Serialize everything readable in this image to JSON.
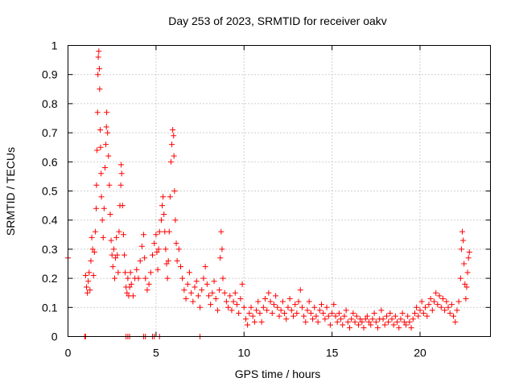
{
  "chart_data": {
    "type": "scatter",
    "title": "Day 253 of 2023, SRMTID for receiver oakv",
    "xlabel": "GPS time / hours",
    "ylabel": "SRMTID / TECUs",
    "xlim": [
      0,
      24
    ],
    "ylim": [
      0,
      1
    ],
    "xticks": [
      "0",
      "5",
      "10",
      "15",
      "20"
    ],
    "yticks": [
      "0",
      "0.1",
      "0.2",
      "0.3",
      "0.4",
      "0.5",
      "0.6",
      "0.7",
      "0.8",
      "0.9",
      "1"
    ],
    "grid": true,
    "marker": "+",
    "color": "#ff0000",
    "series": [
      {
        "name": "SRMTID",
        "points": [
          [
            0.0,
            0.27
          ],
          [
            0.95,
            0.0
          ],
          [
            1.0,
            0.0
          ],
          [
            3.3,
            0.0
          ],
          [
            3.4,
            0.0
          ],
          [
            3.5,
            0.0
          ],
          [
            4.3,
            0.0
          ],
          [
            4.4,
            0.0
          ],
          [
            4.8,
            0.0
          ],
          [
            4.9,
            0.0
          ],
          [
            5.2,
            0.0
          ],
          [
            7.5,
            0.0
          ],
          [
            1.0,
            0.21
          ],
          [
            1.05,
            0.17
          ],
          [
            1.1,
            0.15
          ],
          [
            1.15,
            0.19
          ],
          [
            1.2,
            0.22
          ],
          [
            1.25,
            0.16
          ],
          [
            1.3,
            0.26
          ],
          [
            1.35,
            0.34
          ],
          [
            1.4,
            0.3
          ],
          [
            1.45,
            0.21
          ],
          [
            1.5,
            0.29
          ],
          [
            1.55,
            0.36
          ],
          [
            1.6,
            0.44
          ],
          [
            1.62,
            0.52
          ],
          [
            1.65,
            0.64
          ],
          [
            1.68,
            0.77
          ],
          [
            1.7,
            0.9
          ],
          [
            1.72,
            0.96
          ],
          [
            1.75,
            0.98
          ],
          [
            1.78,
            0.92
          ],
          [
            1.8,
            0.85
          ],
          [
            1.83,
            0.71
          ],
          [
            1.85,
            0.65
          ],
          [
            1.88,
            0.56
          ],
          [
            1.9,
            0.48
          ],
          [
            1.95,
            0.4
          ],
          [
            2.0,
            0.34
          ],
          [
            2.05,
            0.44
          ],
          [
            2.1,
            0.58
          ],
          [
            2.15,
            0.66
          ],
          [
            2.18,
            0.72
          ],
          [
            2.2,
            0.77
          ],
          [
            2.25,
            0.7
          ],
          [
            2.3,
            0.62
          ],
          [
            2.35,
            0.52
          ],
          [
            2.4,
            0.42
          ],
          [
            2.45,
            0.33
          ],
          [
            2.5,
            0.28
          ],
          [
            2.55,
            0.24
          ],
          [
            2.6,
            0.3
          ],
          [
            2.65,
            0.2
          ],
          [
            2.7,
            0.27
          ],
          [
            2.75,
            0.34
          ],
          [
            2.8,
            0.28
          ],
          [
            2.85,
            0.22
          ],
          [
            2.9,
            0.36
          ],
          [
            2.95,
            0.45
          ],
          [
            3.0,
            0.52
          ],
          [
            3.02,
            0.59
          ],
          [
            3.05,
            0.56
          ],
          [
            3.1,
            0.45
          ],
          [
            3.15,
            0.35
          ],
          [
            3.2,
            0.28
          ],
          [
            3.25,
            0.22
          ],
          [
            3.3,
            0.17
          ],
          [
            3.35,
            0.15
          ],
          [
            3.4,
            0.2
          ],
          [
            3.45,
            0.14
          ],
          [
            3.5,
            0.17
          ],
          [
            3.55,
            0.22
          ],
          [
            3.6,
            0.18
          ],
          [
            3.7,
            0.14
          ],
          [
            3.8,
            0.2
          ],
          [
            3.9,
            0.23
          ],
          [
            4.0,
            0.2
          ],
          [
            4.1,
            0.26
          ],
          [
            4.2,
            0.31
          ],
          [
            4.3,
            0.35
          ],
          [
            4.35,
            0.27
          ],
          [
            4.4,
            0.2
          ],
          [
            4.5,
            0.16
          ],
          [
            4.6,
            0.18
          ],
          [
            4.7,
            0.22
          ],
          [
            4.8,
            0.28
          ],
          [
            4.9,
            0.32
          ],
          [
            5.0,
            0.35
          ],
          [
            5.05,
            0.29
          ],
          [
            5.1,
            0.23
          ],
          [
            5.15,
            0.3
          ],
          [
            5.2,
            0.36
          ],
          [
            5.3,
            0.4
          ],
          [
            5.35,
            0.45
          ],
          [
            5.4,
            0.48
          ],
          [
            5.45,
            0.42
          ],
          [
            5.5,
            0.36
          ],
          [
            5.55,
            0.3
          ],
          [
            5.6,
            0.25
          ],
          [
            5.65,
            0.2
          ],
          [
            5.7,
            0.26
          ],
          [
            5.75,
            0.36
          ],
          [
            5.8,
            0.48
          ],
          [
            5.85,
            0.6
          ],
          [
            5.9,
            0.66
          ],
          [
            5.95,
            0.71
          ],
          [
            6.0,
            0.69
          ],
          [
            6.02,
            0.62
          ],
          [
            6.05,
            0.5
          ],
          [
            6.1,
            0.4
          ],
          [
            6.15,
            0.32
          ],
          [
            6.2,
            0.26
          ],
          [
            6.3,
            0.3
          ],
          [
            6.4,
            0.24
          ],
          [
            6.5,
            0.2
          ],
          [
            6.6,
            0.16
          ],
          [
            6.7,
            0.13
          ],
          [
            6.8,
            0.18
          ],
          [
            6.9,
            0.22
          ],
          [
            7.0,
            0.15
          ],
          [
            7.1,
            0.12
          ],
          [
            7.2,
            0.17
          ],
          [
            7.3,
            0.19
          ],
          [
            7.4,
            0.14
          ],
          [
            7.5,
            0.1
          ],
          [
            7.6,
            0.16
          ],
          [
            7.7,
            0.2
          ],
          [
            7.8,
            0.24
          ],
          [
            7.9,
            0.18
          ],
          [
            8.0,
            0.14
          ],
          [
            8.1,
            0.11
          ],
          [
            8.2,
            0.15
          ],
          [
            8.3,
            0.19
          ],
          [
            8.4,
            0.13
          ],
          [
            8.5,
            0.09
          ],
          [
            8.6,
            0.16
          ],
          [
            8.65,
            0.27
          ],
          [
            8.7,
            0.36
          ],
          [
            8.75,
            0.3
          ],
          [
            8.8,
            0.2
          ],
          [
            8.9,
            0.15
          ],
          [
            9.0,
            0.12
          ],
          [
            9.1,
            0.1
          ],
          [
            9.2,
            0.14
          ],
          [
            9.3,
            0.09
          ],
          [
            9.4,
            0.12
          ],
          [
            9.5,
            0.15
          ],
          [
            9.6,
            0.11
          ],
          [
            9.7,
            0.08
          ],
          [
            9.8,
            0.13
          ],
          [
            9.9,
            0.18
          ],
          [
            10.0,
            0.1
          ],
          [
            10.1,
            0.06
          ],
          [
            10.2,
            0.04
          ],
          [
            10.3,
            0.08
          ],
          [
            10.4,
            0.1
          ],
          [
            10.5,
            0.07
          ],
          [
            10.6,
            0.05
          ],
          [
            10.7,
            0.09
          ],
          [
            10.8,
            0.12
          ],
          [
            10.9,
            0.08
          ],
          [
            11.0,
            0.05
          ],
          [
            11.1,
            0.1
          ],
          [
            11.2,
            0.13
          ],
          [
            11.3,
            0.09
          ],
          [
            11.4,
            0.15
          ],
          [
            11.5,
            0.12
          ],
          [
            11.6,
            0.08
          ],
          [
            11.7,
            0.11
          ],
          [
            11.8,
            0.14
          ],
          [
            11.9,
            0.1
          ],
          [
            12.0,
            0.07
          ],
          [
            12.1,
            0.09
          ],
          [
            12.2,
            0.12
          ],
          [
            12.3,
            0.08
          ],
          [
            12.4,
            0.06
          ],
          [
            12.5,
            0.1
          ],
          [
            12.6,
            0.13
          ],
          [
            12.7,
            0.09
          ],
          [
            12.8,
            0.07
          ],
          [
            12.9,
            0.11
          ],
          [
            13.0,
            0.08
          ],
          [
            13.1,
            0.12
          ],
          [
            13.2,
            0.16
          ],
          [
            13.3,
            0.1
          ],
          [
            13.4,
            0.07
          ],
          [
            13.5,
            0.05
          ],
          [
            13.6,
            0.09
          ],
          [
            13.7,
            0.12
          ],
          [
            13.8,
            0.08
          ],
          [
            13.9,
            0.06
          ],
          [
            14.0,
            0.1
          ],
          [
            14.1,
            0.07
          ],
          [
            14.2,
            0.05
          ],
          [
            14.3,
            0.09
          ],
          [
            14.4,
            0.11
          ],
          [
            14.5,
            0.08
          ],
          [
            14.6,
            0.06
          ],
          [
            14.7,
            0.1
          ],
          [
            14.8,
            0.07
          ],
          [
            14.9,
            0.04
          ],
          [
            15.0,
            0.08
          ],
          [
            15.1,
            0.11
          ],
          [
            15.2,
            0.07
          ],
          [
            15.3,
            0.05
          ],
          [
            15.4,
            0.08
          ],
          [
            15.5,
            0.06
          ],
          [
            15.6,
            0.04
          ],
          [
            15.7,
            0.07
          ],
          [
            15.8,
            0.09
          ],
          [
            15.9,
            0.05
          ],
          [
            16.0,
            0.03
          ],
          [
            16.1,
            0.06
          ],
          [
            16.2,
            0.08
          ],
          [
            16.3,
            0.05
          ],
          [
            16.4,
            0.07
          ],
          [
            16.5,
            0.04
          ],
          [
            16.6,
            0.06
          ],
          [
            16.7,
            0.05
          ],
          [
            16.8,
            0.03
          ],
          [
            16.9,
            0.06
          ],
          [
            17.0,
            0.07
          ],
          [
            17.1,
            0.05
          ],
          [
            17.2,
            0.04
          ],
          [
            17.3,
            0.06
          ],
          [
            17.4,
            0.08
          ],
          [
            17.5,
            0.05
          ],
          [
            17.6,
            0.03
          ],
          [
            17.7,
            0.06
          ],
          [
            17.8,
            0.09
          ],
          [
            17.9,
            0.06
          ],
          [
            18.0,
            0.04
          ],
          [
            18.1,
            0.07
          ],
          [
            18.2,
            0.05
          ],
          [
            18.3,
            0.08
          ],
          [
            18.4,
            0.06
          ],
          [
            18.5,
            0.04
          ],
          [
            18.6,
            0.07
          ],
          [
            18.7,
            0.05
          ],
          [
            18.8,
            0.03
          ],
          [
            18.9,
            0.06
          ],
          [
            19.0,
            0.08
          ],
          [
            19.1,
            0.05
          ],
          [
            19.2,
            0.04
          ],
          [
            19.3,
            0.07
          ],
          [
            19.4,
            0.05
          ],
          [
            19.5,
            0.03
          ],
          [
            19.6,
            0.06
          ],
          [
            19.7,
            0.08
          ],
          [
            19.8,
            0.1
          ],
          [
            19.9,
            0.07
          ],
          [
            20.0,
            0.09
          ],
          [
            20.1,
            0.12
          ],
          [
            20.2,
            0.08
          ],
          [
            20.3,
            0.1
          ],
          [
            20.4,
            0.07
          ],
          [
            20.5,
            0.11
          ],
          [
            20.6,
            0.13
          ],
          [
            20.7,
            0.09
          ],
          [
            20.8,
            0.12
          ],
          [
            20.9,
            0.15
          ],
          [
            21.0,
            0.11
          ],
          [
            21.1,
            0.14
          ],
          [
            21.2,
            0.1
          ],
          [
            21.3,
            0.13
          ],
          [
            21.4,
            0.09
          ],
          [
            21.5,
            0.12
          ],
          [
            21.6,
            0.1
          ],
          [
            21.7,
            0.08
          ],
          [
            21.8,
            0.11
          ],
          [
            21.9,
            0.07
          ],
          [
            22.0,
            0.05
          ],
          [
            22.1,
            0.09
          ],
          [
            22.2,
            0.12
          ],
          [
            22.3,
            0.2
          ],
          [
            22.35,
            0.3
          ],
          [
            22.4,
            0.36
          ],
          [
            22.45,
            0.33
          ],
          [
            22.5,
            0.25
          ],
          [
            22.55,
            0.18
          ],
          [
            22.6,
            0.13
          ],
          [
            22.65,
            0.17
          ],
          [
            22.7,
            0.22
          ],
          [
            22.75,
            0.27
          ],
          [
            22.8,
            0.29
          ]
        ]
      }
    ]
  }
}
